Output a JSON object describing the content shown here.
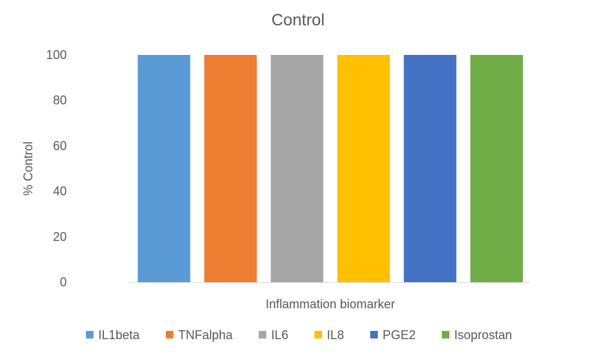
{
  "chart_data": {
    "type": "bar",
    "title": "Control",
    "xlabel": "Inflammation biomarker",
    "ylabel": "% Control",
    "ylim": [
      0,
      100
    ],
    "yticks": [
      0,
      20,
      40,
      60,
      80,
      100
    ],
    "grid": false,
    "legend_position": "bottom",
    "categories": [
      "IL1beta",
      "TNFalpha",
      "IL6",
      "IL8",
      "PGE2",
      "Isoprostan"
    ],
    "values": [
      100,
      100,
      100,
      100,
      100,
      100
    ],
    "colors": [
      "#5b9bd5",
      "#ed7d31",
      "#a5a5a5",
      "#ffc000",
      "#4472c4",
      "#70ad47"
    ]
  }
}
